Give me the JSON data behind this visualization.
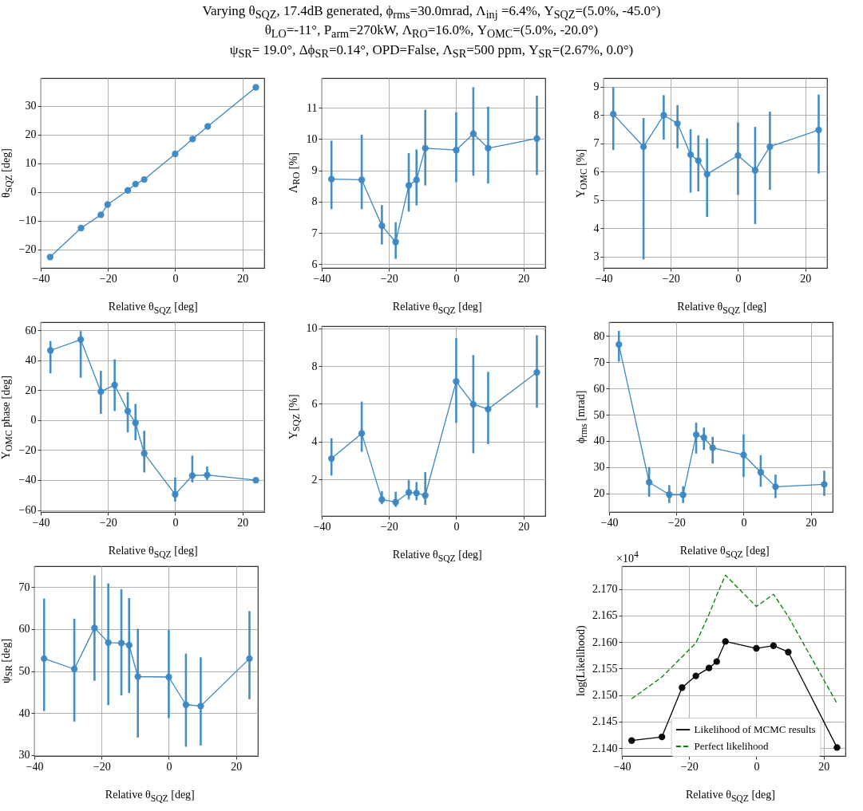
{
  "chart_data": [
    {
      "type": "line",
      "title": "Varying θ$_{SQZ}$, 17.4dB generated, ϕ$_{rms}$=30.0mrad, Λ$_{inj}$ =6.4%, Υ$_{SQZ}$=(5.0%, -45.0°)\nθ$_{LO}$=-11°, P$_{arm}$=270kW, Λ$_{RO}$=16.0%, Υ$_{OMC}$=(5.0%, -20.0°)\nψ$_{SR}$= 19.0°, Δϕ$_{SR}$=0.14°, OPD=False, Λ$_{SR}$=500 ppm, Υ$_{SR}$=(2.67%, 0.0°)",
      "xlabel": "Relative θ$_{SQZ}$ [deg]",
      "ylabel": "θ$_{SQZ}$ [deg]",
      "x": [
        -37.2,
        -28,
        -22.1,
        -20.1,
        -14.1,
        -11.8,
        -9.2,
        0,
        5.2,
        9.7,
        24
      ],
      "xlim": [
        -40,
        26.5
      ],
      "xticks": [
        -40,
        -20,
        0,
        20
      ],
      "ylim": [
        -26.4,
        39.7
      ],
      "yticks": [
        -20,
        -10,
        0,
        10,
        20,
        30
      ],
      "grid": true,
      "marker": "circle",
      "series": [
        {
          "color": "#3a87c4",
          "values": [
            -22.6,
            -12.5,
            -7.9,
            -4.3,
            0.6,
            2.8,
            4.4,
            13.3,
            18.5,
            22.9,
            36.5
          ]
        }
      ]
    },
    {
      "type": "line",
      "xlabel": "Relative θ$_{SQZ}$ [deg]",
      "ylabel": "Λ$_{RO}$ [%]",
      "x": [
        -37.1,
        -28.1,
        -22.1,
        -18,
        -14.1,
        -11.8,
        -9.2,
        0,
        5.1,
        9.5,
        24
      ],
      "xlim": [
        -40,
        26.5
      ],
      "xticks": [
        -40,
        -20,
        0,
        20
      ],
      "ylim": [
        5.88,
        11.95
      ],
      "yticks": [
        6,
        7,
        8,
        9,
        10,
        11
      ],
      "grid": true,
      "marker": "circle",
      "series": [
        {
          "color": "#3a87c4",
          "values": [
            8.72,
            8.7,
            7.23,
            6.71,
            8.52,
            8.7,
            9.71,
            9.65,
            10.17,
            9.71,
            10.02
          ],
          "errors": [
            [
              7.76,
              9.95
            ],
            [
              7.76,
              10.14
            ],
            [
              6.63,
              7.89
            ],
            [
              6.17,
              7.34
            ],
            [
              7.68,
              9.55
            ],
            [
              7.88,
              9.67
            ],
            [
              8.52,
              10.94
            ],
            [
              8.62,
              10.86
            ],
            [
              8.83,
              11.66
            ],
            [
              8.58,
              11.04
            ],
            [
              8.85,
              11.39
            ]
          ]
        }
      ]
    },
    {
      "type": "line",
      "xlabel": "Relative θ$_{SQZ}$ [deg]",
      "ylabel": "Υ$_{OMC}$ [%]",
      "x": [
        -37.1,
        -28.1,
        -22.1,
        -18,
        -14.1,
        -11.8,
        -9.2,
        0,
        5.1,
        9.5,
        24
      ],
      "xlim": [
        -40,
        26.5
      ],
      "xticks": [
        -40,
        -20,
        0,
        20
      ],
      "ylim": [
        2.6,
        9.3
      ],
      "yticks": [
        3,
        4,
        5,
        6,
        7,
        8,
        9
      ],
      "grid": true,
      "marker": "circle",
      "series": [
        {
          "color": "#3a87c4",
          "values": [
            8.03,
            6.88,
            7.99,
            7.7,
            6.6,
            6.39,
            5.91,
            6.57,
            6.05,
            6.88,
            7.47
          ],
          "errors": [
            [
              6.76,
              8.98
            ],
            [
              2.9,
              7.89
            ],
            [
              7.13,
              8.7
            ],
            [
              6.82,
              8.35
            ],
            [
              5.26,
              7.5
            ],
            [
              5.3,
              7.28
            ],
            [
              4.4,
              7.17
            ],
            [
              5.18,
              7.74
            ],
            [
              4.15,
              7.58
            ],
            [
              5.36,
              8.12
            ],
            [
              5.93,
              8.72
            ]
          ]
        }
      ]
    },
    {
      "type": "line",
      "xlabel": "Relative θ$_{SQZ}$ [deg]",
      "ylabel": "Υ$_{OMC}$ phase [deg]",
      "x": [
        -37.1,
        -28.1,
        -22.1,
        -18,
        -14.1,
        -11.8,
        -9.2,
        0,
        5.1,
        9.5,
        24
      ],
      "xlim": [
        -40,
        26.5
      ],
      "xticks": [
        -40,
        -20,
        0,
        20
      ],
      "ylim": [
        -61.3,
        65.4
      ],
      "yticks": [
        -60,
        -40,
        -20,
        0,
        20,
        40,
        60
      ],
      "grid": true,
      "marker": "circle",
      "series": [
        {
          "color": "#3a87c4",
          "values": [
            46.5,
            53.8,
            19,
            23.5,
            6,
            -1.8,
            -22.2,
            -49.6,
            -37,
            -36.6,
            -40.1
          ],
          "errors": [
            [
              31.2,
              52.8
            ],
            [
              28.3,
              59.4
            ],
            [
              4.2,
              32.9
            ],
            [
              6.1,
              40.6
            ],
            [
              -8.2,
              18.7
            ],
            [
              -13.4,
              10.8
            ],
            [
              -34.9,
              -7.1
            ],
            [
              -54.4,
              -38.3
            ],
            [
              -41.6,
              -23.7
            ],
            [
              -40,
              -30.9
            ],
            null
          ]
        }
      ]
    },
    {
      "type": "line",
      "xlabel": "Relative θ$_{SQZ}$ [deg]",
      "ylabel": "Υ$_{SQZ}$ [%]",
      "x": [
        -37.1,
        -28.1,
        -22.1,
        -18,
        -14.1,
        -11.8,
        -9.2,
        0,
        5.1,
        9.5,
        24
      ],
      "xlim": [
        -40,
        26.5
      ],
      "xticks": [
        -40,
        -20,
        0,
        20
      ],
      "ylim": [
        0.06,
        10.12
      ],
      "yticks": [
        2,
        4,
        6,
        8,
        10
      ],
      "grid": true,
      "marker": "circle",
      "series": [
        {
          "color": "#3a87c4",
          "values": [
            3.1,
            4.44,
            0.93,
            0.79,
            1.31,
            1.27,
            1.15,
            7.19,
            5.98,
            5.72,
            7.67
          ],
          "errors": [
            [
              2.2,
              4.18
            ],
            [
              3.46,
              6.12
            ],
            [
              0.68,
              1.38
            ],
            [
              0.54,
              1.34
            ],
            [
              0.93,
              1.96
            ],
            [
              0.89,
              1.86
            ],
            [
              0.65,
              2.38
            ],
            [
              4.99,
              9.48
            ],
            [
              3.38,
              8.59
            ],
            [
              3.87,
              7.7
            ],
            [
              5.8,
              9.64
            ]
          ]
        }
      ]
    },
    {
      "type": "line",
      "xlabel": "Relative θ$_{SQZ}$ [deg]",
      "ylabel": "ϕ$_{rms}$ [mrad]",
      "x": [
        -37.1,
        -28.1,
        -22.1,
        -18,
        -14.1,
        -11.8,
        -9.2,
        0,
        5.1,
        9.5,
        24
      ],
      "xlim": [
        -40,
        26.5
      ],
      "xticks": [
        -40,
        -20,
        0,
        20
      ],
      "ylim": [
        13,
        85.2
      ],
      "yticks": [
        20,
        30,
        40,
        50,
        60,
        70,
        80
      ],
      "grid": true,
      "marker": "circle",
      "series": [
        {
          "color": "#3a87c4",
          "values": [
            76.7,
            24.3,
            19.6,
            19.5,
            42.4,
            41.3,
            37.4,
            34.7,
            28.1,
            22.6,
            23.5
          ],
          "errors": [
            [
              70.2,
              81.9
            ],
            [
              18.8,
              30.1
            ],
            [
              16.4,
              23.2
            ],
            [
              16.4,
              22.8
            ],
            [
              35.2,
              47
            ],
            [
              36.6,
              45.1
            ],
            [
              31.4,
              41.6
            ],
            [
              26.3,
              42.5
            ],
            [
              22.6,
              34.6
            ],
            [
              18.3,
              27.2
            ],
            [
              19.1,
              28.7
            ]
          ]
        }
      ]
    },
    {
      "type": "line",
      "xlabel": "Relative θ$_{SQZ}$ [deg]",
      "ylabel": "ψ$_{SR}$ [deg]",
      "x": [
        -37.1,
        -28.1,
        -22.1,
        -18,
        -14.1,
        -11.8,
        -9.2,
        0,
        5.1,
        9.5,
        24
      ],
      "xlim": [
        -40,
        26.5
      ],
      "xticks": [
        -40,
        -20,
        0,
        20
      ],
      "ylim": [
        29.8,
        75
      ],
      "yticks": [
        30,
        40,
        50,
        60,
        70
      ],
      "grid": true,
      "marker": "circle",
      "series": [
        {
          "color": "#3a87c4",
          "values": [
            53,
            50.5,
            60.3,
            56.8,
            56.7,
            56.2,
            48.7,
            48.6,
            42,
            41.7,
            53
          ],
          "errors": [
            [
              40.5,
              67.3
            ],
            [
              38,
              62.5
            ],
            [
              47.7,
              72.8
            ],
            [
              41.9,
              70.9
            ],
            [
              44.2,
              69.5
            ],
            [
              44.8,
              67.4
            ],
            [
              34.2,
              60.1
            ],
            [
              38.8,
              59.8
            ],
            [
              32,
              54.2
            ],
            [
              32.3,
              53.3
            ],
            [
              43.3,
              64.3
            ]
          ]
        }
      ]
    },
    {
      "type": "line",
      "xlabel": "Relative θ$_{SQZ}$ [deg]",
      "ylabel": "log(Likelihood)",
      "annotations": [
        "×10$^{4}$"
      ],
      "x": [
        -37.1,
        -28.1,
        -22.1,
        -18,
        -14.1,
        -11.8,
        -9.2,
        0,
        5.1,
        9.5,
        24
      ],
      "xlim": [
        -40,
        26.5
      ],
      "xticks": [
        -40,
        -20,
        0,
        20
      ],
      "ylim": [
        2.1385,
        2.1743
      ],
      "yticks": [
        {
          "value": 2.14,
          "label": "2.140"
        },
        2.145,
        {
          "value": 2.15,
          "label": "2.150"
        },
        2.155,
        {
          "value": 2.16,
          "label": "2.160"
        },
        2.165,
        {
          "value": 2.17,
          "label": "2.170"
        }
      ],
      "grid": true,
      "legend": "bottom",
      "series": [
        {
          "name": "Likelihood of MCMC results",
          "color": "#000000",
          "marker": "circle",
          "line_style": "solid",
          "values": [
            2.1414,
            2.1421,
            2.1514,
            2.1536,
            2.1551,
            2.1563,
            2.1601,
            2.1588,
            2.1593,
            2.1581,
            2.1401
          ]
        },
        {
          "name": "Perfect likelihood",
          "color": "#008000",
          "marker": "none",
          "line_style": "dashed",
          "values": [
            2.1493,
            2.1534,
            2.1572,
            2.1598,
            2.1652,
            2.1688,
            2.1726,
            2.1667,
            2.169,
            2.1648,
            2.1484
          ]
        }
      ]
    }
  ]
}
